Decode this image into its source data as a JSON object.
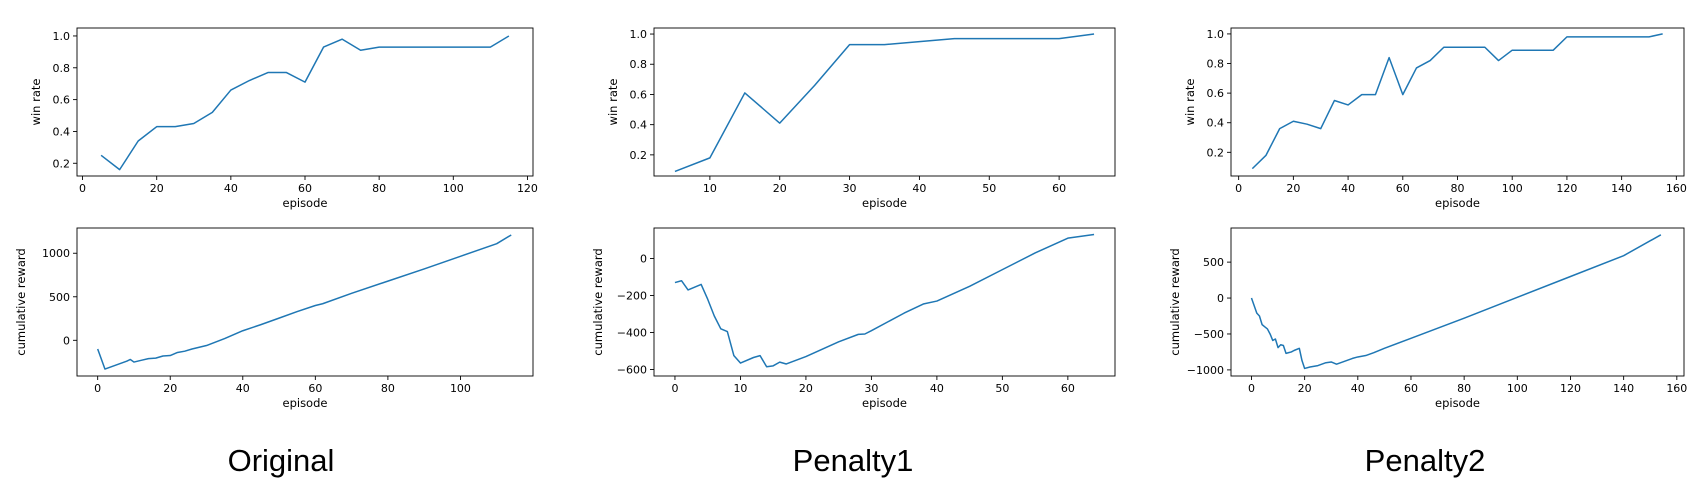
{
  "columns": [
    {
      "caption": "Original"
    },
    {
      "caption": "Penalty1"
    },
    {
      "caption": "Penalty2"
    }
  ],
  "chart_data": [
    {
      "type": "line",
      "column": "Original",
      "row": "top",
      "xlabel": "episode",
      "ylabel": "win rate",
      "xlim": [
        -1.5,
        121.5
      ],
      "ylim": [
        0.12,
        1.05
      ],
      "xticks": [
        0,
        20,
        40,
        60,
        80,
        100,
        120
      ],
      "yticks": [
        0.2,
        0.4,
        0.6,
        0.8,
        1.0
      ],
      "xtick_labels": [
        "0",
        "20",
        "40",
        "60",
        "80",
        "100",
        "120"
      ],
      "ytick_labels": [
        "0.2",
        "0.4",
        "0.6",
        "0.8",
        "1.0"
      ],
      "line_color": "#1f77b4",
      "x": [
        5,
        10,
        15,
        20,
        25,
        30,
        35,
        40,
        45,
        50,
        55,
        60,
        65,
        70,
        75,
        80,
        85,
        90,
        95,
        100,
        105,
        110,
        115
      ],
      "y": [
        0.25,
        0.16,
        0.34,
        0.43,
        0.43,
        0.45,
        0.52,
        0.66,
        0.72,
        0.77,
        0.77,
        0.71,
        0.93,
        0.98,
        0.91,
        0.93,
        0.93,
        0.93,
        0.93,
        0.93,
        0.93,
        0.93,
        1.0
      ]
    },
    {
      "type": "line",
      "column": "Original",
      "row": "bottom",
      "xlabel": "episode",
      "ylabel": "cumulative reward",
      "xlim": [
        -5.7,
        120
      ],
      "ylim": [
        -410,
        1290
      ],
      "xticks": [
        0,
        20,
        40,
        60,
        80,
        100
      ],
      "yticks": [
        0,
        500,
        1000
      ],
      "xtick_labels": [
        "0",
        "20",
        "40",
        "60",
        "80",
        "100"
      ],
      "ytick_labels": [
        "0",
        "500",
        "1000"
      ],
      "line_color": "#1f77b4",
      "x": [
        0,
        2,
        4,
        6,
        8,
        9,
        10,
        12,
        14,
        16,
        18,
        20,
        22,
        24,
        26,
        28,
        30,
        35,
        40,
        45,
        50,
        55,
        60,
        62,
        70,
        80,
        90,
        100,
        110,
        114
      ],
      "y": [
        -100,
        -330,
        -300,
        -270,
        -240,
        -220,
        -250,
        -230,
        -210,
        -205,
        -180,
        -175,
        -140,
        -125,
        -100,
        -80,
        -60,
        20,
        110,
        180,
        255,
        330,
        400,
        420,
        540,
        680,
        820,
        965,
        1110,
        1210
      ]
    },
    {
      "type": "line",
      "column": "Penalty1",
      "row": "top",
      "xlabel": "episode",
      "ylabel": "win rate",
      "xlim": [
        2,
        68
      ],
      "ylim": [
        0.06,
        1.04
      ],
      "xticks": [
        10,
        20,
        30,
        40,
        50,
        60
      ],
      "yticks": [
        0.2,
        0.4,
        0.6,
        0.8,
        1.0
      ],
      "xtick_labels": [
        "10",
        "20",
        "30",
        "40",
        "50",
        "60"
      ],
      "ytick_labels": [
        "0.2",
        "0.4",
        "0.6",
        "0.8",
        "1.0"
      ],
      "line_color": "#1f77b4",
      "x": [
        5,
        10,
        15,
        20,
        25,
        30,
        35,
        40,
        45,
        50,
        55,
        60,
        65
      ],
      "y": [
        0.09,
        0.18,
        0.61,
        0.41,
        0.66,
        0.93,
        0.93,
        0.95,
        0.97,
        0.97,
        0.97,
        0.97,
        1.0
      ]
    },
    {
      "type": "line",
      "column": "Penalty1",
      "row": "bottom",
      "xlabel": "episode",
      "ylabel": "cumulative reward",
      "xlim": [
        -3.2,
        67.2
      ],
      "ylim": [
        -635,
        165
      ],
      "xticks": [
        0,
        10,
        20,
        30,
        40,
        50,
        60
      ],
      "yticks": [
        -600,
        -400,
        -200,
        0
      ],
      "xtick_labels": [
        "0",
        "10",
        "20",
        "30",
        "40",
        "50",
        "60"
      ],
      "ytick_labels": [
        "−600",
        "−400",
        "−200",
        "0"
      ],
      "line_color": "#1f77b4",
      "x": [
        0,
        1,
        2,
        3,
        4,
        5,
        6,
        7,
        8,
        9,
        10,
        12,
        13,
        14,
        15,
        16,
        17,
        20,
        25,
        28,
        29,
        30,
        35,
        38,
        40,
        45,
        50,
        55,
        60,
        64
      ],
      "y": [
        -130,
        -120,
        -170,
        -155,
        -140,
        -220,
        -310,
        -380,
        -395,
        -525,
        -565,
        -535,
        -525,
        -585,
        -580,
        -560,
        -570,
        -530,
        -450,
        -410,
        -408,
        -390,
        -295,
        -245,
        -230,
        -150,
        -60,
        30,
        110,
        130
      ]
    },
    {
      "type": "line",
      "column": "Penalty2",
      "row": "top",
      "xlabel": "episode",
      "ylabel": "win rate",
      "xlim": [
        -2.8,
        162.8
      ],
      "ylim": [
        0.04,
        1.04
      ],
      "xticks": [
        0,
        20,
        40,
        60,
        80,
        100,
        120,
        140,
        160
      ],
      "yticks": [
        0.2,
        0.4,
        0.6,
        0.8,
        1.0
      ],
      "xtick_labels": [
        "0",
        "20",
        "40",
        "60",
        "80",
        "100",
        "120",
        "140",
        "160"
      ],
      "ytick_labels": [
        "0.2",
        "0.4",
        "0.6",
        "0.8",
        "1.0"
      ],
      "line_color": "#1f77b4",
      "x": [
        5,
        10,
        15,
        20,
        25,
        30,
        35,
        40,
        45,
        50,
        55,
        60,
        65,
        70,
        75,
        80,
        85,
        90,
        95,
        100,
        105,
        110,
        115,
        120,
        125,
        130,
        135,
        140,
        145,
        150,
        155
      ],
      "y": [
        0.09,
        0.18,
        0.36,
        0.41,
        0.39,
        0.36,
        0.55,
        0.52,
        0.59,
        0.59,
        0.84,
        0.59,
        0.77,
        0.82,
        0.91,
        0.91,
        0.91,
        0.91,
        0.82,
        0.89,
        0.89,
        0.89,
        0.89,
        0.98,
        0.98,
        0.98,
        0.98,
        0.98,
        0.98,
        0.98,
        1.0
      ]
    },
    {
      "type": "line",
      "column": "Penalty2",
      "row": "bottom",
      "xlabel": "episode",
      "ylabel": "cumulative reward",
      "xlim": [
        -7.7,
        162.7
      ],
      "ylim": [
        -1085,
        975
      ],
      "xticks": [
        0,
        20,
        40,
        60,
        80,
        100,
        120,
        140,
        160
      ],
      "yticks": [
        -1000,
        -500,
        0,
        500
      ],
      "xtick_labels": [
        "0",
        "20",
        "40",
        "60",
        "80",
        "100",
        "120",
        "140",
        "160"
      ],
      "ytick_labels": [
        "−1000",
        "−500",
        "0",
        "500"
      ],
      "line_color": "#1f77b4",
      "x": [
        0,
        2,
        3,
        4,
        5,
        6,
        7,
        8,
        9,
        10,
        11,
        12,
        13,
        14,
        15,
        16,
        18,
        19,
        20,
        22,
        25,
        28,
        30,
        32,
        35,
        38,
        40,
        43,
        46,
        50,
        60,
        80,
        100,
        120,
        140,
        154
      ],
      "y": [
        0,
        -210,
        -250,
        -370,
        -400,
        -430,
        -500,
        -590,
        -570,
        -690,
        -650,
        -660,
        -770,
        -760,
        -750,
        -730,
        -700,
        -870,
        -980,
        -960,
        -940,
        -900,
        -890,
        -920,
        -880,
        -840,
        -820,
        -800,
        -760,
        -700,
        -560,
        -280,
        10,
        300,
        590,
        880
      ]
    }
  ]
}
